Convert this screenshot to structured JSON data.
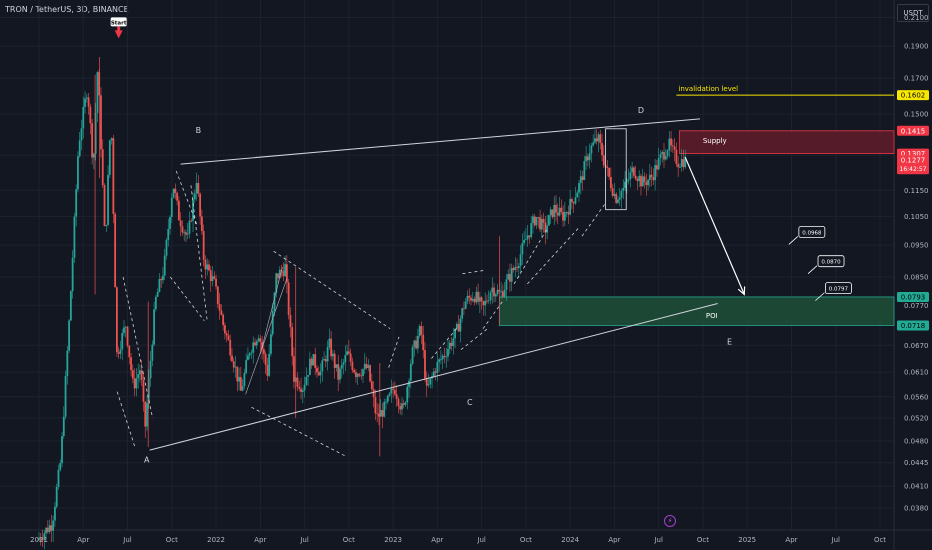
{
  "header": {
    "symbol": "TRON / TetherUS, 3D, BINANCE",
    "currency": "USDT",
    "bolt_icon": "⚡"
  },
  "chart_data": {
    "type": "candlestick",
    "ylim": [
      0.0352,
      0.2232
    ],
    "log_scale": true,
    "grid": true,
    "x_ticks": [
      {
        "label": "2021",
        "t": 0
      },
      {
        "label": "Apr",
        "t": 3
      },
      {
        "label": "Jul",
        "t": 6
      },
      {
        "label": "Oct",
        "t": 9
      },
      {
        "label": "2022",
        "t": 12
      },
      {
        "label": "Apr",
        "t": 15
      },
      {
        "label": "Jul",
        "t": 18
      },
      {
        "label": "Oct",
        "t": 21
      },
      {
        "label": "2023",
        "t": 24
      },
      {
        "label": "Apr",
        "t": 27
      },
      {
        "label": "Jul",
        "t": 30
      },
      {
        "label": "Oct",
        "t": 33
      },
      {
        "label": "2024",
        "t": 36
      },
      {
        "label": "Apr",
        "t": 39
      },
      {
        "label": "Jul",
        "t": 42
      },
      {
        "label": "Oct",
        "t": 45
      },
      {
        "label": "2025",
        "t": 48
      },
      {
        "label": "Apr",
        "t": 51
      },
      {
        "label": "Jul",
        "t": 54
      },
      {
        "label": "Oct",
        "t": 57
      }
    ],
    "y_ticks": [
      "0.2100",
      "0.1900",
      "0.1700",
      "0.1500",
      "0.1300",
      "0.1150",
      "0.1050",
      "0.0950",
      "0.0850",
      "0.0770",
      "0.0670",
      "0.0610",
      "0.0560",
      "0.0520",
      "0.0480",
      "0.0445",
      "0.0410",
      "0.0380"
    ],
    "price_tags": [
      {
        "label": "0.1602",
        "value": 0.1602,
        "bg": "#f7e600",
        "fg": "#000000"
      },
      {
        "label": "0.1415",
        "value": 0.1415,
        "bg": "#f23645",
        "fg": "#ffffff"
      },
      {
        "label": "0.1307",
        "value": 0.1307,
        "bg": "#f23645",
        "fg": "#ffffff"
      },
      {
        "label": "0.0793",
        "value": 0.0793,
        "bg": "#22ab94",
        "fg": "#000000"
      },
      {
        "label": "0.0718",
        "value": 0.0718,
        "bg": "#22ab94",
        "fg": "#000000"
      }
    ],
    "current_price": {
      "label": "0.1277",
      "countdown": "16:42:57",
      "value": 0.1277,
      "bg": "#f23645"
    },
    "price_path": [
      [
        0,
        0.034
      ],
      [
        1,
        0.036
      ],
      [
        1.6,
        0.045
      ],
      [
        2.2,
        0.075
      ],
      [
        2.8,
        0.135
      ],
      [
        3.4,
        0.165
      ],
      [
        3.8,
        0.125
      ],
      [
        4.1,
        0.178
      ],
      [
        4.6,
        0.095
      ],
      [
        5,
        0.15
      ],
      [
        5.4,
        0.065
      ],
      [
        6,
        0.072
      ],
      [
        6.5,
        0.058
      ],
      [
        7,
        0.062
      ],
      [
        7.3,
        0.05
      ],
      [
        8,
        0.078
      ],
      [
        8.6,
        0.088
      ],
      [
        9.2,
        0.118
      ],
      [
        9.6,
        0.105
      ],
      [
        10.2,
        0.097
      ],
      [
        10.8,
        0.12
      ],
      [
        11.3,
        0.09
      ],
      [
        12,
        0.083
      ],
      [
        12.6,
        0.072
      ],
      [
        13.2,
        0.065
      ],
      [
        13.8,
        0.057
      ],
      [
        14.4,
        0.066
      ],
      [
        15,
        0.07
      ],
      [
        15.6,
        0.061
      ],
      [
        16.2,
        0.085
      ],
      [
        16.8,
        0.088
      ],
      [
        17.4,
        0.06
      ],
      [
        18,
        0.058
      ],
      [
        18.6,
        0.064
      ],
      [
        19.2,
        0.061
      ],
      [
        19.8,
        0.067
      ],
      [
        20.4,
        0.06
      ],
      [
        21,
        0.065
      ],
      [
        21.6,
        0.061
      ],
      [
        22.4,
        0.062
      ],
      [
        23,
        0.052
      ],
      [
        23.6,
        0.054
      ],
      [
        24.2,
        0.058
      ],
      [
        24.8,
        0.053
      ],
      [
        25.4,
        0.065
      ],
      [
        26,
        0.071
      ],
      [
        26.4,
        0.057
      ],
      [
        27,
        0.062
      ],
      [
        27.6,
        0.065
      ],
      [
        28.4,
        0.07
      ],
      [
        29,
        0.078
      ],
      [
        29.6,
        0.08
      ],
      [
        30.2,
        0.076
      ],
      [
        30.8,
        0.082
      ],
      [
        31.4,
        0.08
      ],
      [
        32,
        0.085
      ],
      [
        32.6,
        0.09
      ],
      [
        33.2,
        0.098
      ],
      [
        33.8,
        0.105
      ],
      [
        34.4,
        0.1
      ],
      [
        35,
        0.108
      ],
      [
        35.6,
        0.105
      ],
      [
        36.2,
        0.11
      ],
      [
        36.8,
        0.118
      ],
      [
        37.4,
        0.132
      ],
      [
        38,
        0.138
      ],
      [
        38.6,
        0.123
      ],
      [
        39.2,
        0.112
      ],
      [
        39.8,
        0.116
      ],
      [
        40.4,
        0.124
      ],
      [
        41,
        0.118
      ],
      [
        41.6,
        0.12
      ],
      [
        42.2,
        0.128
      ],
      [
        42.8,
        0.135
      ],
      [
        43.4,
        0.127
      ],
      [
        43.8,
        0.1277
      ]
    ],
    "zones": [
      {
        "name": "Supply",
        "top": 0.1415,
        "bottom": 0.1307,
        "t0": 43.4,
        "t1": 60,
        "fill": "#5d1c2a",
        "stroke": "#f23645"
      },
      {
        "name": "POI",
        "top": 0.0793,
        "bottom": 0.0718,
        "t0": 31.2,
        "t1": 60,
        "fill": "#1e4d36",
        "stroke": "#22ab94"
      }
    ],
    "invalidation": {
      "label": "invalidation level",
      "value": 0.1602,
      "t0": 43.2,
      "t1": 60,
      "color": "#f7e600"
    },
    "trendlines": [
      {
        "points": [
          [
            7.5,
            0.0465
          ],
          [
            46,
            0.0775
          ]
        ],
        "style": "solid"
      },
      {
        "points": [
          [
            9.6,
            0.126
          ],
          [
            44.8,
            0.1475
          ]
        ],
        "style": "solid"
      }
    ],
    "dashed_lines": [
      [
        [
          5.7,
          0.085
        ],
        [
          7.7,
          0.052
        ]
      ],
      [
        [
          5.3,
          0.057
        ],
        [
          6.5,
          0.047
        ]
      ],
      [
        [
          9.3,
          0.123
        ],
        [
          10.7,
          0.102
        ]
      ],
      [
        [
          8.9,
          0.085
        ],
        [
          11.2,
          0.073
        ]
      ],
      [
        [
          10.3,
          0.117
        ],
        [
          11.4,
          0.073
        ]
      ],
      [
        [
          14.4,
          0.054
        ],
        [
          20.8,
          0.0455
        ]
      ],
      [
        [
          15.9,
          0.093
        ],
        [
          23.8,
          0.071
        ]
      ],
      [
        [
          23.7,
          0.062
        ],
        [
          24.4,
          0.069
        ]
      ],
      [
        [
          26.6,
          0.064
        ],
        [
          28.3,
          0.071
        ]
      ],
      [
        [
          28.6,
          0.066
        ],
        [
          30.4,
          0.071
        ]
      ],
      [
        [
          28.7,
          0.086
        ],
        [
          30.2,
          0.087
        ]
      ],
      [
        [
          30.1,
          0.071
        ],
        [
          31.4,
          0.078
        ]
      ],
      [
        [
          32.2,
          0.083
        ],
        [
          34.5,
          0.101
        ]
      ],
      [
        [
          33.1,
          0.083
        ],
        [
          36.6,
          0.101
        ]
      ],
      [
        [
          36.8,
          0.098
        ],
        [
          38.4,
          0.11
        ]
      ]
    ],
    "thin_lines": [
      [
        [
          14.0,
          0.0565
        ],
        [
          16.8,
          0.0845
        ]
      ],
      [
        [
          15.0,
          0.065
        ],
        [
          16.5,
          0.088
        ]
      ]
    ],
    "projection_arrow": [
      [
        43.8,
        0.129
      ],
      [
        47.8,
        0.08
      ]
    ],
    "rect": {
      "t0": 38.4,
      "t1": 39.8,
      "top": 0.1425,
      "bottom": 0.1075
    },
    "letters": [
      {
        "label": "A",
        "t": 7.3,
        "v": 0.0445
      },
      {
        "label": "B",
        "t": 10.8,
        "v": 0.1405
      },
      {
        "label": "C",
        "t": 29.2,
        "v": 0.0544
      },
      {
        "label": "D",
        "t": 40.8,
        "v": 0.1505
      },
      {
        "label": "E",
        "t": 46.8,
        "v": 0.0672
      }
    ],
    "annotations": [
      {
        "label": "Start",
        "t": 5.4,
        "v": 0.205
      },
      {
        "label": "Supply",
        "t": 45.8,
        "v": 0.1355
      },
      {
        "label": "POI",
        "t": 45.6,
        "v": 0.0737
      }
    ],
    "callouts": [
      {
        "label": "0.0968",
        "t": 51.5,
        "v": 0.1
      },
      {
        "label": "0.0870",
        "t": 52.8,
        "v": 0.0903
      },
      {
        "label": "0.0797",
        "t": 53.3,
        "v": 0.0822
      }
    ]
  }
}
